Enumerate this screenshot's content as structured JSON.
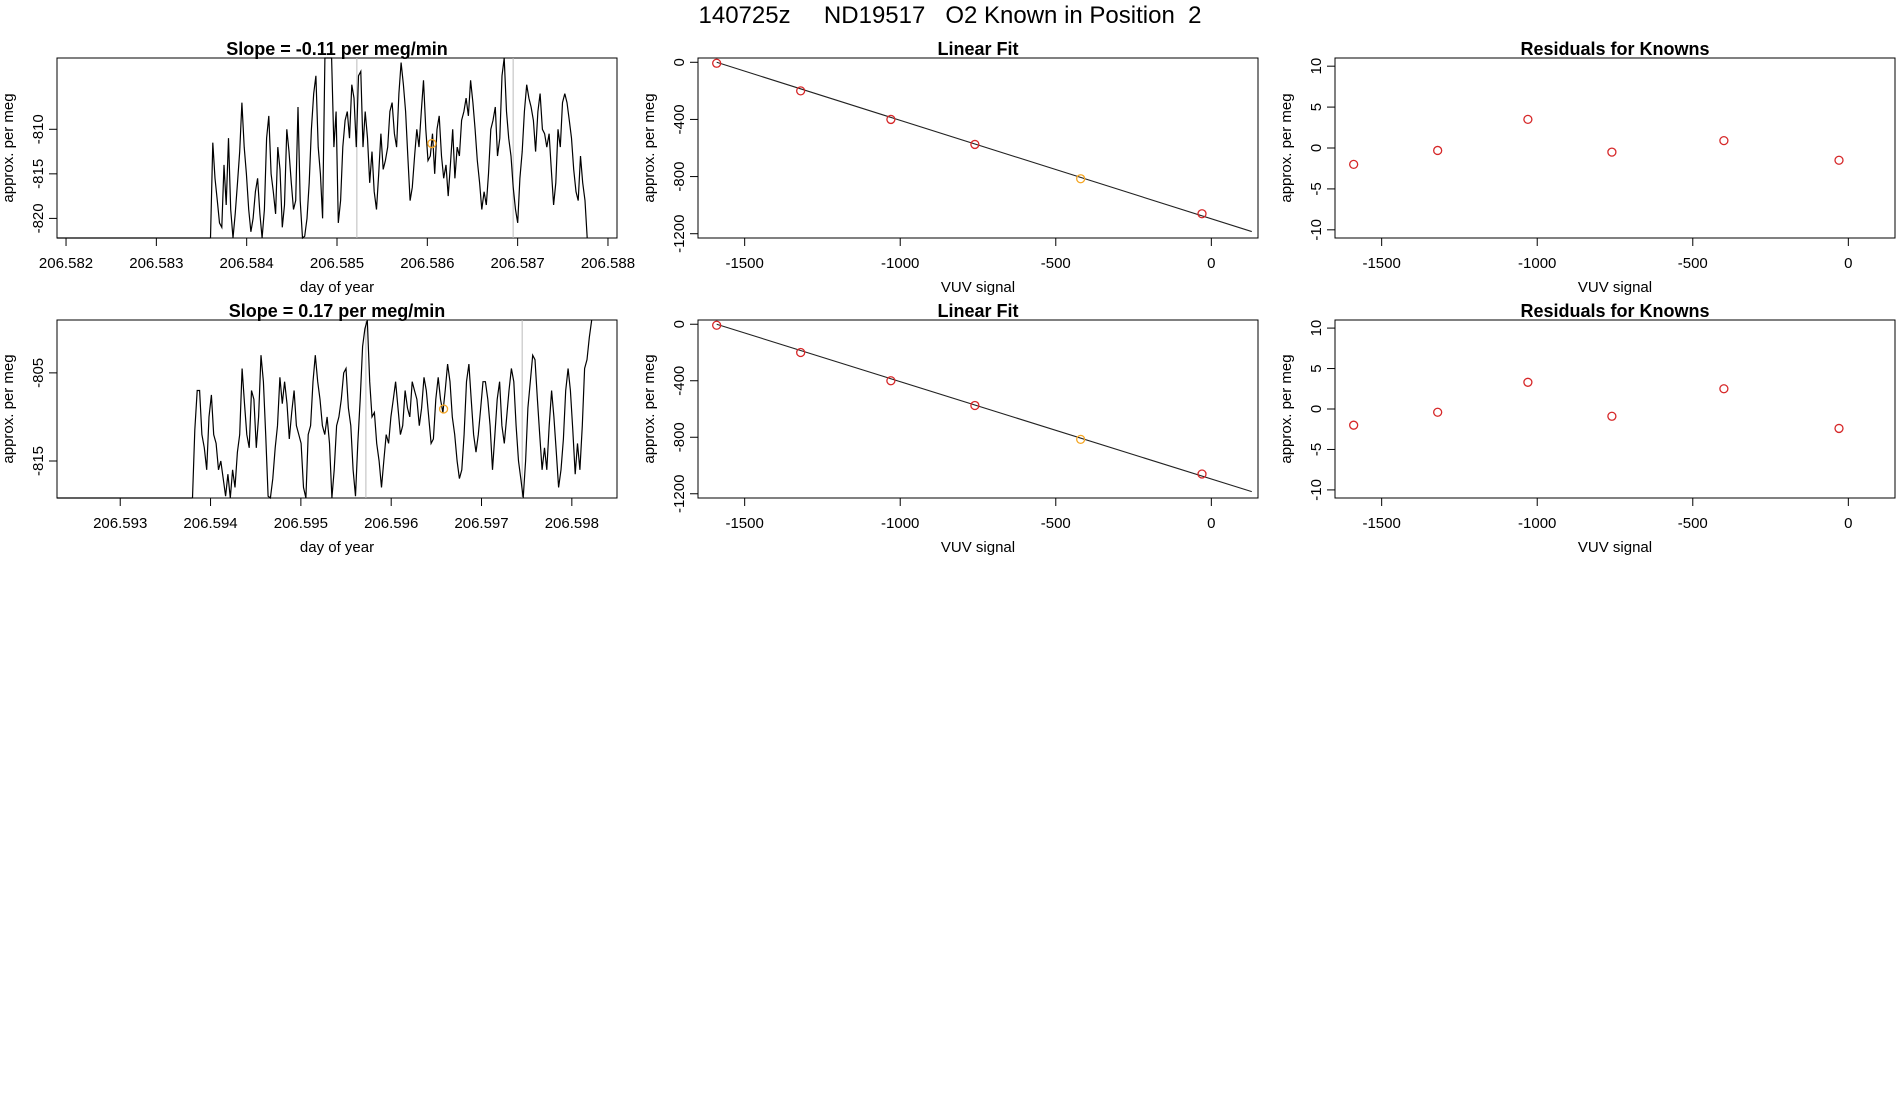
{
  "page_title": "140725z     ND19517   O2 Known in Position  2",
  "colors": {
    "line": "#000000",
    "point_red": "#d62728",
    "point_orange": "#f5a623",
    "reference_line": "#bbbbbb"
  },
  "chart_data": [
    {
      "type": "line",
      "title": "Slope =  -0.11  per meg/min",
      "xlabel": "day of year",
      "ylabel": "approx. per meg",
      "xlim": [
        206.5819,
        206.5881
      ],
      "ylim": [
        -822.2,
        -802.0
      ],
      "x_ticks": [
        "206.582",
        "206.583",
        "206.584",
        "206.585",
        "206.586",
        "206.587",
        "206.588"
      ],
      "y_ticks": [
        "-810",
        "-815",
        "-820"
      ],
      "vertical_lines_x": [
        206.58522,
        206.58695
      ],
      "x_start": 206.5836,
      "x_end": 206.58777,
      "y_values": [
        -822.2,
        -811.5,
        -815.5,
        -818,
        -820.5,
        -821,
        -814,
        -818.5,
        -811,
        -819,
        -822.2,
        -819.5,
        -816,
        -812.5,
        -807,
        -812,
        -815,
        -819,
        -821.5,
        -820,
        -817,
        -815.5,
        -819.5,
        -822.2,
        -819,
        -811,
        -808.5,
        -815,
        -817,
        -819.5,
        -812,
        -814.5,
        -821,
        -818.5,
        -810,
        -812.5,
        -816,
        -819,
        -818,
        -807.5,
        -818,
        -822.2,
        -822,
        -820,
        -816,
        -810,
        -806,
        -804,
        -812,
        -815,
        -820,
        -802,
        -802,
        -802,
        -802,
        -812,
        -808,
        -820.5,
        -818,
        -812,
        -809,
        -808,
        -811,
        -805,
        -806.5,
        -812,
        -804,
        -803.5,
        -812,
        -808,
        -811,
        -816,
        -812.5,
        -817,
        -819,
        -815,
        -810.5,
        -814.5,
        -813.5,
        -812,
        -808,
        -807,
        -810.5,
        -812,
        -806,
        -802.5,
        -805,
        -808,
        -813,
        -818,
        -816.5,
        -813,
        -810,
        -812,
        -808,
        -804.5,
        -810,
        -813.5,
        -813,
        -810.5,
        -815,
        -810,
        -808.5,
        -813,
        -815.5,
        -814,
        -817.5,
        -814,
        -810,
        -815.5,
        -812,
        -813,
        -809,
        -808,
        -806.5,
        -808.5,
        -804.5,
        -807,
        -810,
        -813.5,
        -816,
        -819,
        -817,
        -818.5,
        -815,
        -810,
        -809,
        -807.5,
        -813,
        -811,
        -804,
        -802,
        -808,
        -811,
        -813,
        -816.5,
        -819,
        -820.5,
        -815.5,
        -812.5,
        -808,
        -805,
        -806.5,
        -807.5,
        -809,
        -812.5,
        -808,
        -806,
        -810,
        -810.5,
        -812,
        -810.5,
        -814.5,
        -818.5,
        -816,
        -810,
        -812,
        -807,
        -806,
        -807,
        -809,
        -811,
        -814.5,
        -817,
        -818,
        -813,
        -816,
        -818,
        -822.2
      ],
      "marker": {
        "x": 206.58605,
        "y": -811.6
      }
    },
    {
      "type": "scatter",
      "title": "Linear Fit",
      "xlabel": "VUV signal",
      "ylabel": "approx. per meg",
      "xlim": [
        -1650,
        150
      ],
      "ylim": [
        -1230,
        30
      ],
      "x_ticks": [
        "-1500",
        "-1000",
        "-500",
        "0"
      ],
      "y_ticks": [
        "0",
        "-400",
        "-800",
        "-1200"
      ],
      "x": [
        -1590,
        -1320,
        -1030,
        -760,
        -420,
        -30
      ],
      "y": [
        -7,
        -200,
        -400,
        -575,
        -815,
        -1060
      ],
      "fit_line": {
        "x": [
          -1590,
          130
        ],
        "y": [
          0,
          -1185
        ]
      },
      "highlight_index": 4
    },
    {
      "type": "scatter",
      "title": "Residuals for Knowns",
      "xlabel": "VUV signal",
      "ylabel": "approx. per meg",
      "xlim": [
        -1650,
        150
      ],
      "ylim": [
        -11,
        11
      ],
      "x_ticks": [
        "-1500",
        "-1000",
        "-500",
        "0"
      ],
      "y_ticks": [
        "10",
        "5",
        "0",
        "-5",
        "-10"
      ],
      "x": [
        -1590,
        -1320,
        -1030,
        -760,
        -400,
        -30
      ],
      "y": [
        -2,
        -0.3,
        3.5,
        -0.5,
        0.9,
        -1.5
      ]
    },
    {
      "type": "line",
      "title": "Slope =  0.17  per meg/min",
      "xlabel": "day of year",
      "ylabel": "approx. per meg",
      "xlim": [
        206.5923,
        206.5985
      ],
      "ylim": [
        -819.2,
        -799.0
      ],
      "x_ticks": [
        "206.593",
        "206.594",
        "206.595",
        "206.596",
        "206.597",
        "206.598"
      ],
      "y_ticks": [
        "-805",
        "-815"
      ],
      "vertical_lines_x": [
        206.59572,
        206.59745
      ],
      "x_start": 206.5938,
      "x_end": 206.59822,
      "y_values": [
        -819.2,
        -811.5,
        -807,
        -807,
        -812,
        -813.5,
        -816,
        -810,
        -807.5,
        -812,
        -813,
        -816,
        -815,
        -817,
        -819,
        -816.5,
        -819.2,
        -816,
        -818,
        -814,
        -812,
        -804.5,
        -808.5,
        -812,
        -813.5,
        -807,
        -808,
        -813.5,
        -810,
        -803,
        -806,
        -812,
        -819,
        -819.2,
        -817,
        -813.5,
        -811,
        -805.5,
        -808.5,
        -806,
        -808.5,
        -812.5,
        -809.5,
        -807,
        -811,
        -812,
        -813,
        -818,
        -819.2,
        -812,
        -811,
        -806,
        -803,
        -806,
        -808,
        -811,
        -812,
        -810,
        -813,
        -819.2,
        -816,
        -811,
        -810,
        -808,
        -805,
        -804.5,
        -809,
        -811,
        -816,
        -819,
        -813,
        -808,
        -802,
        -800,
        -799,
        -806,
        -810,
        -809.5,
        -813,
        -815,
        -818,
        -815,
        -812,
        -813,
        -810,
        -808,
        -806,
        -809,
        -812,
        -811,
        -807,
        -809,
        -810,
        -806,
        -807,
        -808,
        -811,
        -809,
        -805.5,
        -807,
        -810,
        -813,
        -812.5,
        -808,
        -805.5,
        -808,
        -809.5,
        -807,
        -804,
        -806,
        -810,
        -812,
        -815,
        -817,
        -816,
        -812,
        -806,
        -804,
        -808,
        -812,
        -814,
        -812,
        -809,
        -806,
        -806,
        -808,
        -811,
        -816,
        -812,
        -808,
        -806,
        -811,
        -813,
        -810,
        -807,
        -804.5,
        -806,
        -811,
        -815,
        -817,
        -819.2,
        -815,
        -809,
        -806,
        -803,
        -803.5,
        -808,
        -812,
        -816,
        -813.5,
        -816,
        -811,
        -807,
        -810,
        -814,
        -818,
        -816,
        -812.5,
        -807,
        -804.5,
        -807,
        -811.5,
        -816.5,
        -813,
        -816,
        -811,
        -804.5,
        -803.5,
        -801,
        -799
      ],
      "marker": {
        "x": 206.59658,
        "y": -809.1
      }
    },
    {
      "type": "scatter",
      "title": "Linear Fit",
      "xlabel": "VUV signal",
      "ylabel": "approx. per meg",
      "xlim": [
        -1650,
        150
      ],
      "ylim": [
        -1230,
        30
      ],
      "x_ticks": [
        "-1500",
        "-1000",
        "-500",
        "0"
      ],
      "y_ticks": [
        "0",
        "-400",
        "-800",
        "-1200"
      ],
      "x": [
        -1590,
        -1320,
        -1030,
        -760,
        -420,
        -30
      ],
      "y": [
        -7,
        -200,
        -400,
        -575,
        -815,
        -1060
      ],
      "fit_line": {
        "x": [
          -1590,
          130
        ],
        "y": [
          0,
          -1185
        ]
      },
      "highlight_index": 4
    },
    {
      "type": "scatter",
      "title": "Residuals for Knowns",
      "xlabel": "VUV signal",
      "ylabel": "approx. per meg",
      "xlim": [
        -1650,
        150
      ],
      "ylim": [
        -11,
        11
      ],
      "x_ticks": [
        "-1500",
        "-1000",
        "-500",
        "0"
      ],
      "y_ticks": [
        "10",
        "5",
        "0",
        "-5",
        "-10"
      ],
      "x": [
        -1590,
        -1320,
        -1030,
        -760,
        -400,
        -30
      ],
      "y": [
        -2,
        -0.4,
        3.3,
        -0.9,
        2.5,
        -2.4
      ]
    }
  ]
}
